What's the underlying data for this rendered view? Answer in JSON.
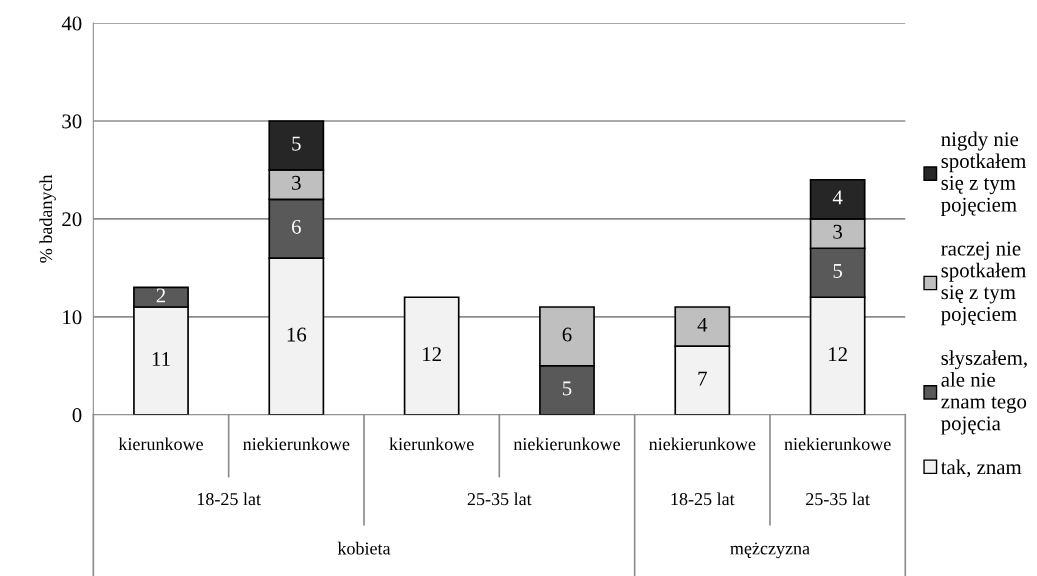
{
  "chart_data": {
    "type": "bar",
    "stacked": true,
    "ylabel": "% badanych",
    "categories": [
      "kierunkowe",
      "niekierunkowe",
      "kierunkowe",
      "niekierunkowe",
      "niekierunkowe",
      "niekierunkowe"
    ],
    "annotations": [
      "18-25 lat",
      "25-35 lat",
      "18-25 lat",
      "25-35 lat",
      "kobieta",
      "mężczyzna"
    ],
    "series": [
      {
        "name": "tak, znam",
        "color": "#f2f2f2",
        "values": [
          11,
          16,
          12,
          null,
          7,
          12
        ]
      },
      {
        "name": "słyszałem, ale nie znam tego pojęcia",
        "color": "#595959",
        "values": [
          2,
          6,
          null,
          5,
          null,
          5
        ]
      },
      {
        "name": "raczej nie spotkałem się z tym pojęciem",
        "color": "#bfbfbf",
        "values": [
          null,
          3,
          null,
          6,
          4,
          3
        ]
      },
      {
        "name": "nigdy nie spotkałem się z tym pojęciem",
        "color": "#262626",
        "values": [
          null,
          5,
          null,
          null,
          null,
          4
        ]
      }
    ],
    "ylim": [
      0,
      40
    ],
    "yticks": [
      0,
      10,
      20,
      30,
      40
    ],
    "grid": "y",
    "legend": "right",
    "data_labels": true
  }
}
